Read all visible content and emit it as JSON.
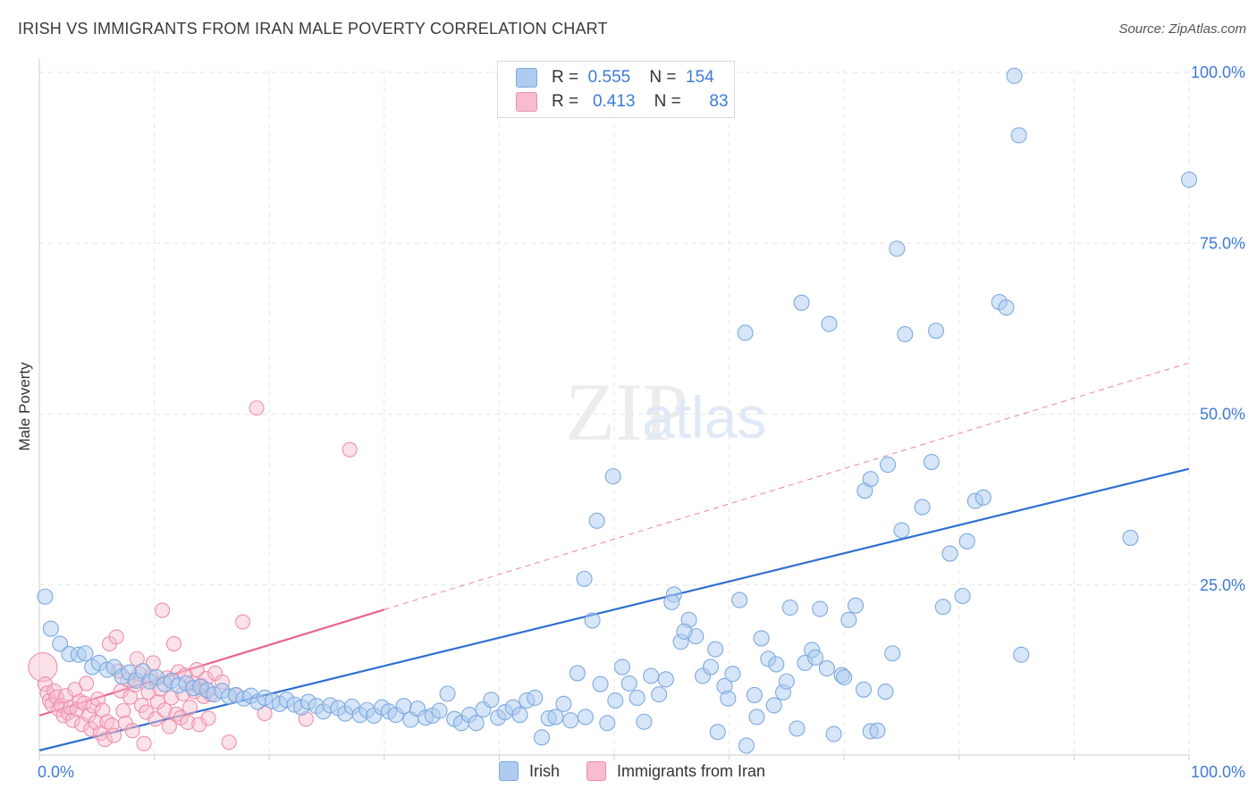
{
  "header": {
    "title": "IRISH VS IMMIGRANTS FROM IRAN MALE POVERTY CORRELATION CHART",
    "source": "Source: ZipAtlas.com"
  },
  "watermark": {
    "zip": "ZIP",
    "atlas": "atlas"
  },
  "legend_top": {
    "irish": {
      "r_label": "R =",
      "r_value": "0.555",
      "n_label": "N =",
      "n_value": "154"
    },
    "iran": {
      "r_label": "R =",
      "r_value": "0.413",
      "n_label": "N =",
      "n_value": "83"
    }
  },
  "legend_bottom": {
    "irish": "Irish",
    "iran": "Immigrants from Iran"
  },
  "colors": {
    "irish_fill": "#aecbf0",
    "irish_stroke": "#7eaae0",
    "irish_line": "#2f6fd1",
    "iran_fill": "#f7bccd",
    "iran_stroke": "#ef8fab",
    "iran_line": "#e8648f",
    "tick_label": "#3d7bd9",
    "grid": "#e6e6e6"
  },
  "chart_data": {
    "type": "scatter",
    "title": "IRISH VS IMMIGRANTS FROM IRAN MALE POVERTY CORRELATION CHART",
    "xlabel": "",
    "ylabel": "Male Poverty",
    "xlim": [
      0,
      100
    ],
    "ylim": [
      0,
      105
    ],
    "x_tick_labels": [
      {
        "value": 0,
        "label": "0.0%"
      },
      {
        "value": 100,
        "label": "100.0%"
      }
    ],
    "y_tick_labels": [
      {
        "value": 25,
        "label": "25.0%"
      },
      {
        "value": 50,
        "label": "50.0%"
      },
      {
        "value": 75,
        "label": "75.0%"
      },
      {
        "value": 100,
        "label": "100.0%"
      }
    ],
    "grid": true,
    "legend_position": "top-center",
    "series": [
      {
        "name": "Irish",
        "r": 0.555,
        "n": 154,
        "trend": {
          "x": [
            0,
            100
          ],
          "y": [
            0.8,
            42.0
          ],
          "style": "solid"
        },
        "points": [
          [
            0.5,
            23.3
          ],
          [
            1.0,
            18.6
          ],
          [
            1.8,
            16.4
          ],
          [
            2.6,
            14.9
          ],
          [
            3.4,
            14.8
          ],
          [
            4.0,
            15.0
          ],
          [
            4.6,
            13.0
          ],
          [
            5.2,
            13.6
          ],
          [
            5.9,
            12.6
          ],
          [
            6.5,
            13.0
          ],
          [
            7.2,
            11.6
          ],
          [
            7.8,
            12.2
          ],
          [
            8.4,
            11.0
          ],
          [
            9.0,
            12.4
          ],
          [
            9.6,
            10.9
          ],
          [
            10.2,
            11.5
          ],
          [
            10.9,
            10.5
          ],
          [
            11.5,
            11.0
          ],
          [
            12.1,
            10.3
          ],
          [
            12.8,
            10.6
          ],
          [
            13.4,
            9.9
          ],
          [
            14.0,
            10.1
          ],
          [
            14.6,
            9.6
          ],
          [
            15.2,
            9.0
          ],
          [
            15.9,
            9.5
          ],
          [
            16.5,
            8.7
          ],
          [
            17.1,
            8.9
          ],
          [
            17.8,
            8.4
          ],
          [
            18.4,
            8.8
          ],
          [
            19.0,
            7.9
          ],
          [
            19.6,
            8.5
          ],
          [
            20.3,
            8.0
          ],
          [
            20.9,
            7.6
          ],
          [
            21.5,
            8.2
          ],
          [
            22.2,
            7.5
          ],
          [
            22.8,
            7.1
          ],
          [
            23.4,
            7.9
          ],
          [
            24.1,
            7.3
          ],
          [
            24.7,
            6.5
          ],
          [
            25.3,
            7.4
          ],
          [
            26.0,
            7.0
          ],
          [
            26.6,
            6.2
          ],
          [
            27.2,
            7.2
          ],
          [
            27.9,
            6.0
          ],
          [
            28.5,
            6.7
          ],
          [
            29.1,
            5.9
          ],
          [
            29.8,
            7.1
          ],
          [
            30.4,
            6.5
          ],
          [
            31.0,
            6.0
          ],
          [
            31.7,
            7.3
          ],
          [
            32.3,
            5.3
          ],
          [
            32.9,
            6.9
          ],
          [
            33.6,
            5.6
          ],
          [
            34.2,
            5.9
          ],
          [
            34.8,
            6.6
          ],
          [
            35.5,
            9.1
          ],
          [
            36.1,
            5.4
          ],
          [
            36.7,
            4.8
          ],
          [
            37.4,
            6.0
          ],
          [
            38.0,
            4.8
          ],
          [
            38.6,
            6.8
          ],
          [
            39.3,
            8.2
          ],
          [
            39.9,
            5.6
          ],
          [
            40.5,
            6.4
          ],
          [
            41.2,
            7.1
          ],
          [
            41.8,
            6.0
          ],
          [
            42.4,
            8.1
          ],
          [
            43.1,
            8.5
          ],
          [
            43.7,
            2.7
          ],
          [
            44.3,
            5.5
          ],
          [
            44.9,
            5.7
          ],
          [
            45.6,
            7.6
          ],
          [
            46.2,
            5.2
          ],
          [
            46.8,
            12.1
          ],
          [
            47.5,
            5.7
          ],
          [
            48.1,
            19.8
          ],
          [
            48.8,
            10.5
          ],
          [
            49.4,
            4.8
          ],
          [
            50.1,
            8.1
          ],
          [
            50.7,
            13.0
          ],
          [
            51.3,
            10.6
          ],
          [
            52.0,
            8.5
          ],
          [
            52.6,
            5.0
          ],
          [
            53.2,
            11.7
          ],
          [
            53.9,
            9.0
          ],
          [
            54.5,
            11.2
          ],
          [
            55.2,
            23.6
          ],
          [
            55.8,
            16.7
          ],
          [
            56.5,
            19.9
          ],
          [
            57.1,
            17.5
          ],
          [
            57.7,
            11.7
          ],
          [
            58.4,
            13.0
          ],
          [
            59.0,
            3.5
          ],
          [
            59.6,
            10.2
          ],
          [
            60.3,
            12.0
          ],
          [
            60.9,
            22.8
          ],
          [
            61.5,
            1.5
          ],
          [
            62.2,
            8.9
          ],
          [
            62.8,
            17.2
          ],
          [
            63.4,
            14.2
          ],
          [
            64.1,
            13.4
          ],
          [
            64.7,
            9.3
          ],
          [
            65.3,
            21.7
          ],
          [
            65.9,
            4.0
          ],
          [
            66.6,
            13.6
          ],
          [
            67.2,
            15.5
          ],
          [
            67.9,
            21.5
          ],
          [
            68.5,
            12.8
          ],
          [
            69.1,
            3.2
          ],
          [
            69.8,
            11.8
          ],
          [
            70.4,
            19.9
          ],
          [
            71.0,
            22.0
          ],
          [
            71.7,
            9.7
          ],
          [
            72.3,
            3.6
          ],
          [
            72.9,
            3.7
          ],
          [
            73.6,
            9.4
          ],
          [
            74.2,
            15.0
          ],
          [
            75.0,
            33.0
          ],
          [
            76.8,
            36.4
          ],
          [
            78.6,
            21.8
          ],
          [
            80.3,
            23.4
          ],
          [
            85.4,
            14.8
          ],
          [
            94.9,
            31.9
          ],
          [
            47.4,
            25.9
          ],
          [
            48.5,
            34.4
          ],
          [
            49.9,
            40.9
          ],
          [
            61.4,
            61.9
          ],
          [
            66.3,
            66.3
          ],
          [
            68.7,
            63.2
          ],
          [
            71.8,
            38.8
          ],
          [
            72.3,
            40.5
          ],
          [
            73.8,
            42.6
          ],
          [
            74.6,
            74.2
          ],
          [
            75.3,
            61.7
          ],
          [
            77.6,
            43.0
          ],
          [
            78.0,
            62.2
          ],
          [
            79.2,
            29.6
          ],
          [
            80.7,
            31.4
          ],
          [
            81.4,
            37.3
          ],
          [
            82.1,
            37.8
          ],
          [
            83.5,
            66.4
          ],
          [
            84.1,
            65.6
          ],
          [
            84.8,
            99.5
          ],
          [
            85.2,
            90.8
          ],
          [
            100.0,
            84.3
          ],
          [
            55.0,
            22.5
          ],
          [
            56.1,
            18.2
          ],
          [
            58.8,
            15.6
          ],
          [
            59.9,
            8.4
          ],
          [
            62.4,
            5.7
          ],
          [
            63.9,
            7.4
          ],
          [
            65.0,
            10.9
          ],
          [
            67.5,
            14.4
          ],
          [
            70.0,
            11.5
          ]
        ]
      },
      {
        "name": "Immigrants from Iran",
        "r": 0.413,
        "n": 83,
        "trend": {
          "x": [
            0,
            30
          ],
          "y": [
            5.9,
            21.4
          ],
          "style": "solid",
          "extended": {
            "x": [
              30,
              100
            ],
            "y": [
              21.4,
              57.5
            ],
            "style": "dashed"
          }
        },
        "points": [
          [
            0.3,
            13.0
          ],
          [
            0.5,
            10.5
          ],
          [
            0.7,
            9.2
          ],
          [
            0.9,
            8.1
          ],
          [
            1.1,
            7.5
          ],
          [
            1.3,
            9.5
          ],
          [
            1.5,
            8.6
          ],
          [
            1.7,
            6.8
          ],
          [
            1.9,
            7.4
          ],
          [
            2.1,
            5.9
          ],
          [
            2.3,
            8.8
          ],
          [
            2.5,
            6.3
          ],
          [
            2.7,
            7.1
          ],
          [
            2.9,
            5.2
          ],
          [
            3.1,
            9.7
          ],
          [
            3.3,
            6.8
          ],
          [
            3.5,
            8.0
          ],
          [
            3.7,
            4.6
          ],
          [
            3.9,
            7.7
          ],
          [
            4.1,
            10.6
          ],
          [
            4.3,
            6.0
          ],
          [
            4.5,
            3.9
          ],
          [
            4.7,
            7.3
          ],
          [
            4.9,
            4.9
          ],
          [
            5.1,
            8.3
          ],
          [
            5.3,
            3.3
          ],
          [
            5.5,
            6.7
          ],
          [
            5.7,
            2.4
          ],
          [
            5.9,
            5.0
          ],
          [
            6.1,
            16.4
          ],
          [
            6.3,
            4.5
          ],
          [
            6.5,
            3.0
          ],
          [
            6.7,
            17.4
          ],
          [
            6.9,
            12.4
          ],
          [
            7.1,
            9.5
          ],
          [
            7.3,
            6.6
          ],
          [
            7.5,
            4.8
          ],
          [
            7.7,
            11.1
          ],
          [
            7.9,
            8.6
          ],
          [
            8.1,
            3.7
          ],
          [
            8.3,
            10.4
          ],
          [
            8.5,
            14.2
          ],
          [
            8.7,
            12.0
          ],
          [
            8.9,
            7.4
          ],
          [
            9.1,
            1.8
          ],
          [
            9.3,
            6.4
          ],
          [
            9.5,
            9.3
          ],
          [
            9.7,
            11.6
          ],
          [
            9.9,
            13.6
          ],
          [
            10.1,
            5.4
          ],
          [
            10.3,
            7.9
          ],
          [
            10.5,
            9.8
          ],
          [
            10.7,
            21.3
          ],
          [
            10.9,
            6.7
          ],
          [
            11.1,
            11.4
          ],
          [
            11.3,
            4.3
          ],
          [
            11.5,
            8.5
          ],
          [
            11.7,
            16.4
          ],
          [
            11.9,
            6.1
          ],
          [
            12.1,
            12.3
          ],
          [
            12.3,
            5.6
          ],
          [
            12.5,
            9.1
          ],
          [
            12.7,
            11.8
          ],
          [
            12.9,
            4.9
          ],
          [
            13.1,
            7.1
          ],
          [
            13.3,
            10.7
          ],
          [
            13.5,
            9.4
          ],
          [
            13.7,
            12.6
          ],
          [
            13.9,
            4.6
          ],
          [
            14.1,
            10.3
          ],
          [
            14.3,
            8.7
          ],
          [
            14.5,
            11.3
          ],
          [
            14.7,
            5.5
          ],
          [
            14.9,
            9.0
          ],
          [
            15.3,
            12.1
          ],
          [
            15.9,
            10.8
          ],
          [
            16.5,
            2.0
          ],
          [
            17.1,
            8.9
          ],
          [
            17.7,
            19.6
          ],
          [
            18.9,
            50.9
          ],
          [
            19.6,
            6.2
          ],
          [
            23.2,
            5.4
          ],
          [
            27.0,
            44.8
          ]
        ]
      }
    ]
  }
}
